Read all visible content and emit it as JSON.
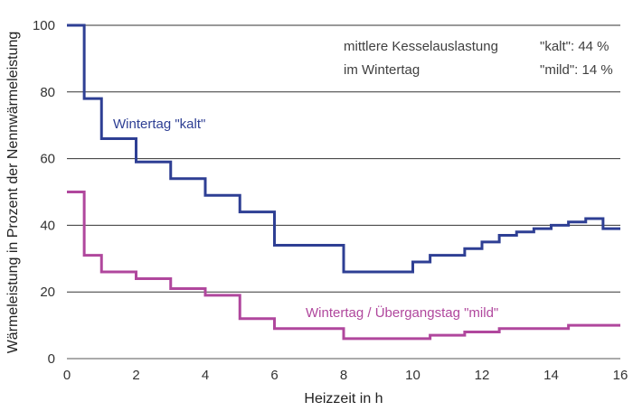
{
  "chart_data": {
    "type": "line",
    "step": true,
    "xlabel": "Heizzeit in h",
    "ylabel": "Wärmeleistung in Prozent der Nennwärmeleistung",
    "xlim": [
      0,
      16
    ],
    "ylim": [
      0,
      100
    ],
    "xticks": [
      "0",
      "2",
      "4",
      "6",
      "8",
      "10",
      "12",
      "14",
      "16"
    ],
    "yticks": [
      "0",
      "20",
      "40",
      "60",
      "80",
      "100"
    ],
    "grid": "horizontal",
    "annotation": {
      "line1_left": "mittlere Kesselauslastung",
      "line1_right": "\"kalt\": 44 %",
      "line2_left": "im Wintertag",
      "line2_right": "\"mild\": 14 %"
    },
    "series": [
      {
        "name": "Wintertag \"kalt\"",
        "color": "#2e3f94",
        "x": [
          0,
          0.5,
          1,
          2,
          3,
          4,
          5,
          6,
          8,
          10,
          10.5,
          11.5,
          12,
          12.5,
          13,
          13.5,
          14,
          14.5,
          15,
          15.5
        ],
        "values": [
          100,
          78,
          66,
          59,
          54,
          49,
          44,
          34,
          26,
          29,
          31,
          33,
          35,
          37,
          38,
          39,
          40,
          41,
          42,
          39
        ],
        "x_end": 16
      },
      {
        "name": "Wintertag / Übergangstag \"mild\"",
        "color": "#b0479d",
        "x": [
          0,
          0.5,
          1,
          2,
          3,
          4,
          5,
          6,
          8,
          10.5,
          11.5,
          12.5,
          14.5
        ],
        "values": [
          50,
          31,
          26,
          24,
          21,
          19,
          12,
          9,
          6,
          7,
          8,
          9,
          10
        ],
        "x_end": 16
      }
    ]
  }
}
